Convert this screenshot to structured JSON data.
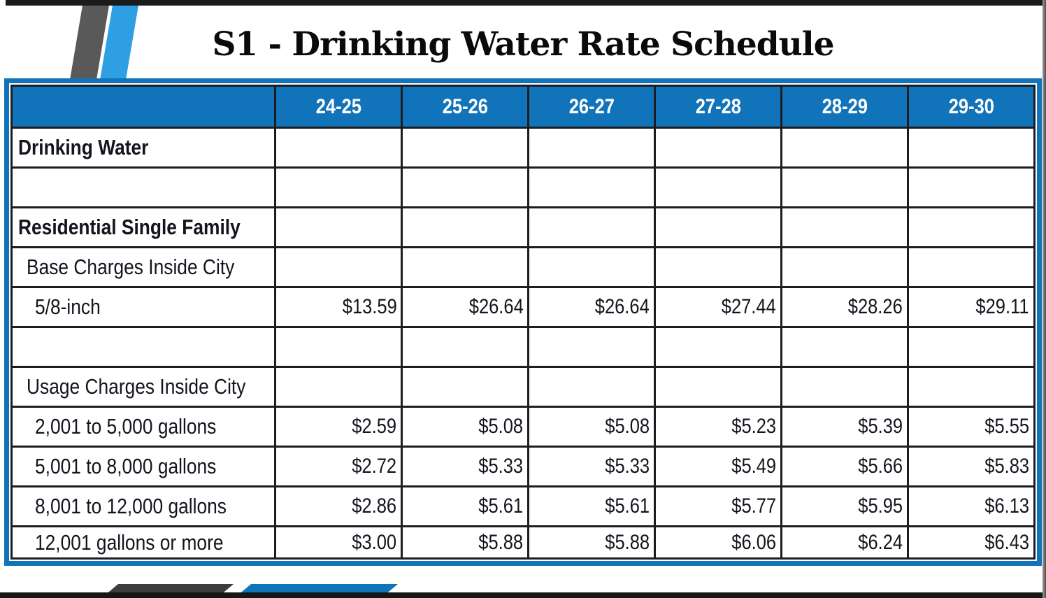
{
  "slide": {
    "title": "S1 - Drinking Water Rate Schedule"
  },
  "table": {
    "corner_label": "",
    "columns": [
      "24-25",
      "25-26",
      "26-27",
      "27-28",
      "28-29",
      "29-30"
    ],
    "rows": [
      {
        "label": "Drinking Water",
        "style": "section",
        "values": [
          "",
          "",
          "",
          "",
          "",
          ""
        ]
      },
      {
        "label": "",
        "style": "empty",
        "values": [
          "",
          "",
          "",
          "",
          "",
          ""
        ]
      },
      {
        "label": "Residential Single Family",
        "style": "section",
        "values": [
          "",
          "",
          "",
          "",
          "",
          ""
        ]
      },
      {
        "label": "Base Charges Inside City",
        "style": "subheader",
        "values": [
          "",
          "",
          "",
          "",
          "",
          ""
        ]
      },
      {
        "label": "5/8-inch",
        "style": "item",
        "values": [
          "$13.59",
          "$26.64",
          "$26.64",
          "$27.44",
          "$28.26",
          "$29.11"
        ]
      },
      {
        "label": "",
        "style": "empty",
        "values": [
          "",
          "",
          "",
          "",
          "",
          ""
        ]
      },
      {
        "label": "Usage Charges Inside City",
        "style": "subheader",
        "values": [
          "",
          "",
          "",
          "",
          "",
          ""
        ]
      },
      {
        "label": "2,001 to 5,000 gallons",
        "style": "item",
        "values": [
          "$2.59",
          "$5.08",
          "$5.08",
          "$5.23",
          "$5.39",
          "$5.55"
        ]
      },
      {
        "label": "5,001 to 8,000 gallons",
        "style": "item",
        "values": [
          "$2.72",
          "$5.33",
          "$5.33",
          "$5.49",
          "$5.66",
          "$5.83"
        ]
      },
      {
        "label": "8,001 to 12,000 gallons",
        "style": "item",
        "values": [
          "$2.86",
          "$5.61",
          "$5.61",
          "$5.77",
          "$5.95",
          "$6.13"
        ]
      },
      {
        "label": "12,001 gallons or more",
        "style": "item",
        "values": [
          "$3.00",
          "$5.88",
          "$5.88",
          "$6.06",
          "$6.24",
          "$6.43"
        ]
      }
    ]
  },
  "colors": {
    "header_blue": "#1173b9",
    "frame_blue": "#1173b9",
    "stripe_blue": "#2f9fe3",
    "stripe_gray": "#595959",
    "edge_black": "#1b1b1b",
    "text_dark": "#14141e"
  }
}
